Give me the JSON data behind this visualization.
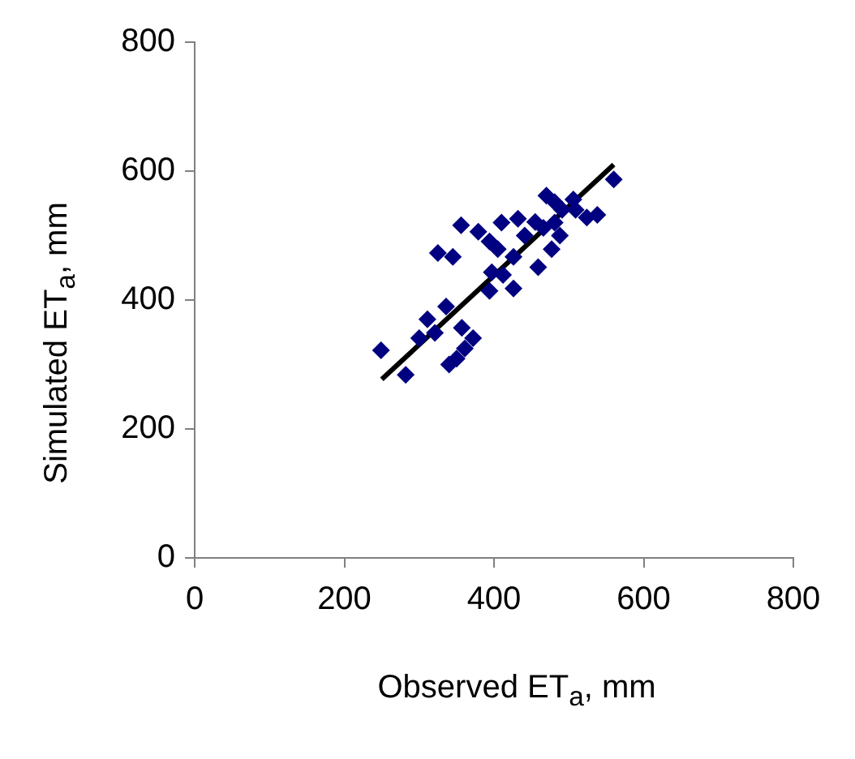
{
  "chart_data": {
    "type": "scatter",
    "xlabel": "Observed ET$_{a}$, mm",
    "ylabel": "Simulated ET$_{a}$, mm",
    "xlim": [
      0,
      800
    ],
    "xticks": [
      0,
      200,
      400,
      600,
      800
    ],
    "ylim": [
      0,
      800
    ],
    "yticks": [
      0,
      200,
      400,
      600,
      800
    ],
    "grid": false,
    "legend": false,
    "marker": "diamond",
    "series": [
      {
        "color": "#000080",
        "x": [
          249,
          282,
          356,
          325,
          345,
          379,
          394,
          405,
          410,
          432,
          441,
          455,
          470,
          481,
          506,
          491,
          524,
          538,
          560,
          481,
          488,
          477,
          459,
          426,
          397,
          412,
          394,
          426,
          336,
          311,
          300,
          321,
          357,
          372,
          361,
          350,
          340,
          466,
          509
        ],
        "values": [
          322,
          284,
          516,
          473,
          467,
          506,
          491,
          479,
          520,
          526,
          500,
          521,
          562,
          552,
          556,
          540,
          528,
          532,
          587,
          520,
          500,
          479,
          451,
          467,
          443,
          439,
          414,
          418,
          390,
          370,
          341,
          349,
          357,
          341,
          325,
          309,
          300,
          512,
          540
        ]
      },
      {
        "type": "line",
        "color": "#000000",
        "marker": "none",
        "x": [
          250,
          560
        ],
        "values": [
          277,
          610
        ]
      }
    ]
  }
}
